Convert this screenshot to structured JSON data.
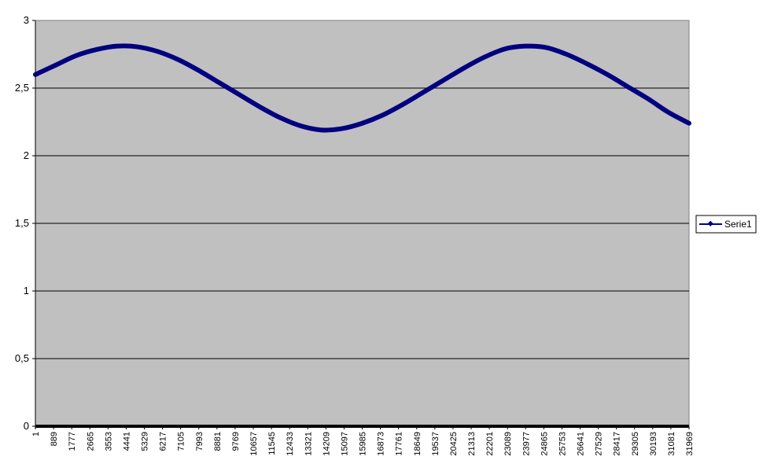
{
  "chart_data": {
    "type": "line",
    "title": "",
    "xlabel": "",
    "ylabel": "",
    "ylim": [
      0,
      3
    ],
    "y_ticks": [
      "0",
      "0,5",
      "1",
      "1,5",
      "2",
      "2,5",
      "3"
    ],
    "x_tick_labels": [
      "1",
      "889",
      "1777",
      "2665",
      "3553",
      "4441",
      "5329",
      "6217",
      "7105",
      "7993",
      "8881",
      "9769",
      "10657",
      "11545",
      "12433",
      "13321",
      "14209",
      "15097",
      "15985",
      "16873",
      "17761",
      "18649",
      "19537",
      "20425",
      "21313",
      "22201",
      "23089",
      "23977",
      "24865",
      "25753",
      "26641",
      "27529",
      "28417",
      "29305",
      "30193",
      "31081",
      "31969"
    ],
    "x_range": [
      1,
      32000
    ],
    "grid": true,
    "legend_position": "right",
    "plot_background": "#c0c0c0",
    "series": [
      {
        "name": "Serie1",
        "color": "#000080",
        "x": [
          1,
          1000,
          2000,
          3000,
          4000,
          5000,
          6000,
          7000,
          8000,
          9000,
          10000,
          11000,
          12000,
          13000,
          14000,
          15000,
          16000,
          17000,
          18000,
          19000,
          20000,
          21000,
          22000,
          23000,
          24000,
          25000,
          26000,
          27000,
          28000,
          29000,
          30000,
          31000,
          32000
        ],
        "values": [
          2.6,
          2.67,
          2.74,
          2.785,
          2.81,
          2.805,
          2.77,
          2.71,
          2.63,
          2.54,
          2.45,
          2.36,
          2.28,
          2.22,
          2.19,
          2.2,
          2.24,
          2.3,
          2.38,
          2.47,
          2.56,
          2.65,
          2.73,
          2.79,
          2.81,
          2.8,
          2.75,
          2.68,
          2.6,
          2.51,
          2.42,
          2.32,
          2.24
        ]
      }
    ]
  }
}
